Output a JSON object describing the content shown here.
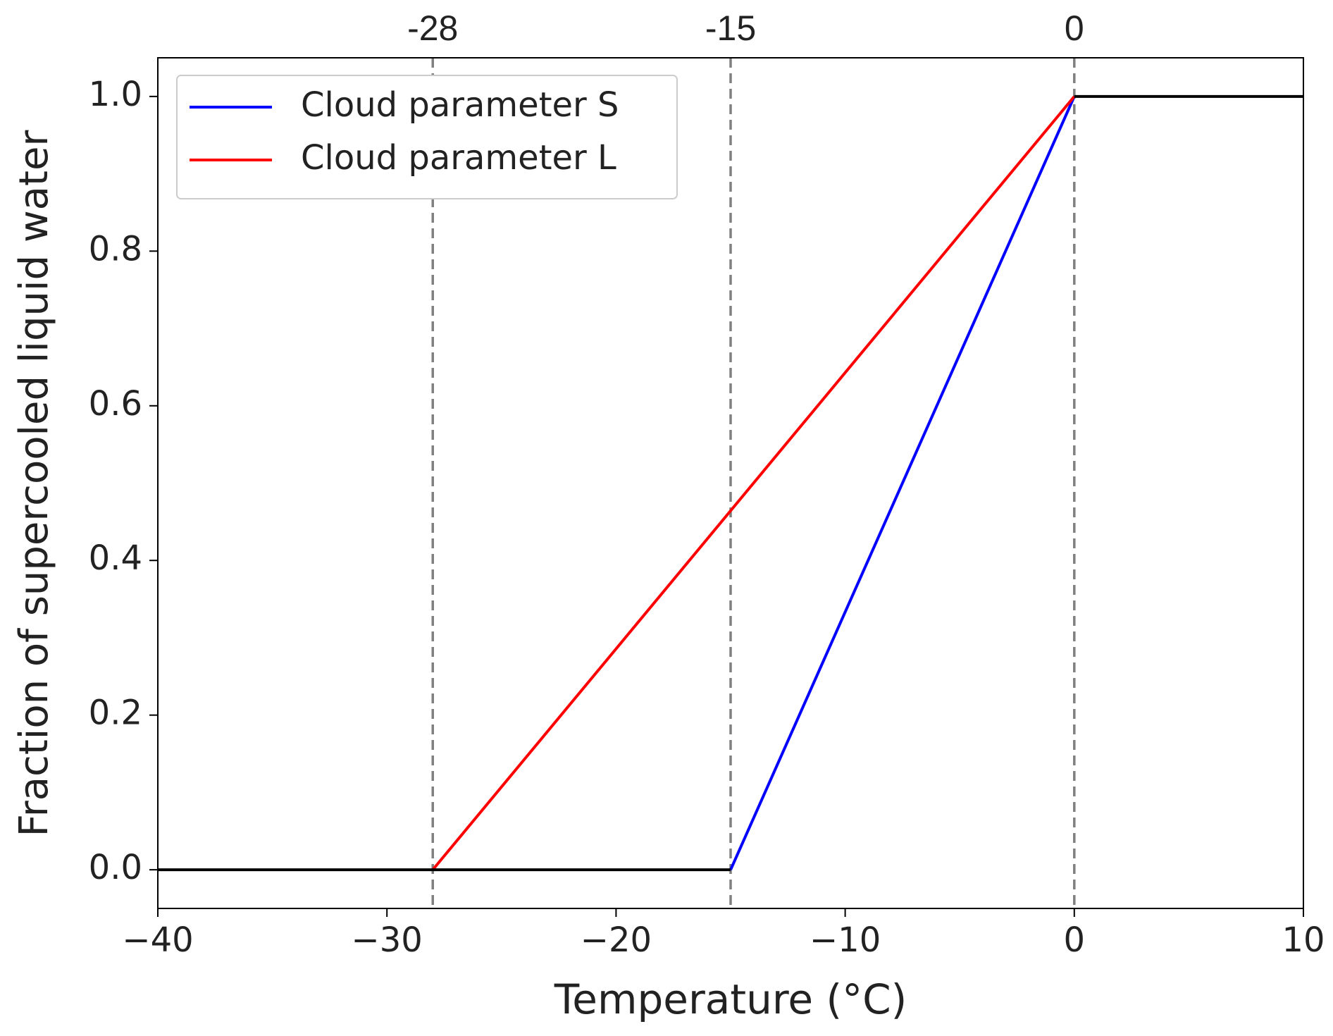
{
  "chart_data": {
    "type": "line",
    "x_label": "Temperature (°C)",
    "y_label": "Fraction of supercooled liquid water",
    "xlim": [
      -40,
      10
    ],
    "ylim": [
      -0.05,
      1.05
    ],
    "xticks": [
      {
        "value": -40,
        "label": "−40"
      },
      {
        "value": -30,
        "label": "−30"
      },
      {
        "value": -20,
        "label": "−20"
      },
      {
        "value": -10,
        "label": "−10"
      },
      0,
      10
    ],
    "yticks": [
      {
        "value": 0,
        "label": "0.0"
      },
      0.2,
      0.4,
      0.6,
      0.8,
      {
        "value": 1,
        "label": "1.0"
      }
    ],
    "vlines": [
      -28,
      -15,
      0
    ],
    "vline_color": "#808080",
    "legend": "upper left",
    "series": [
      {
        "name": "Cloud parameter S",
        "color": "#0000ff",
        "x": [
          -15,
          0
        ],
        "values": [
          0,
          1
        ]
      },
      {
        "name": "Cloud parameter L",
        "color": "#ff0000",
        "x": [
          -28,
          0
        ],
        "values": [
          0,
          1
        ]
      },
      {
        "color": "#000000",
        "x": [
          -40,
          -15
        ],
        "values": [
          0,
          0
        ]
      },
      {
        "color": "#000000",
        "x": [
          0,
          10
        ],
        "values": [
          1,
          1
        ]
      }
    ]
  }
}
